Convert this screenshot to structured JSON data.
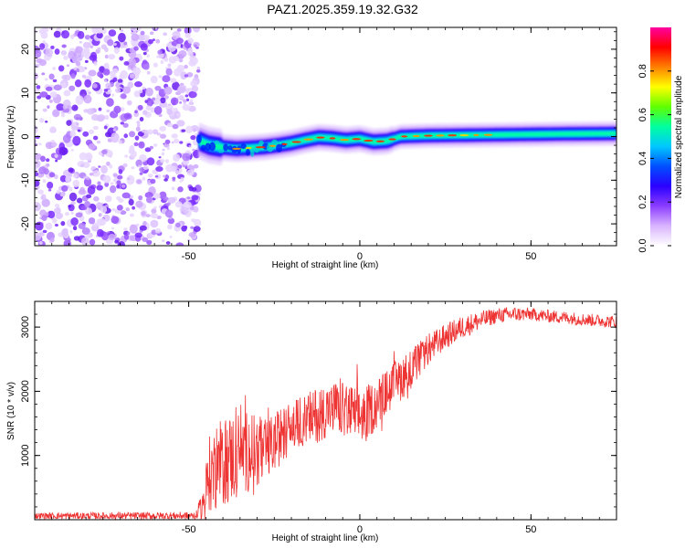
{
  "title": "PAZ1.2025.359.19.32.G32",
  "chart_data": [
    {
      "type": "heatmap",
      "title": "PAZ1.2025.359.19.32.G32",
      "xlabel": "Height of straight line (km)",
      "ylabel": "Frequency (Hz)",
      "xlim": [
        -95,
        75
      ],
      "ylim": [
        -25,
        25
      ],
      "xticks": [
        -50,
        0,
        50
      ],
      "yticks": [
        -20,
        -10,
        0,
        10,
        20
      ],
      "noise_region_x": [
        -95,
        -47
      ],
      "ridge": {
        "x": [
          -47,
          -44,
          -40,
          -36,
          -32,
          -28,
          -24,
          -20,
          -16,
          -12,
          -8,
          -4,
          0,
          4,
          8,
          12,
          20,
          30,
          40,
          50,
          60,
          75
        ],
        "frequency": [
          -1,
          -2,
          -2.5,
          -2.8,
          -2.6,
          -2.4,
          -2,
          -1.5,
          -0.8,
          -0.2,
          -0.4,
          -0.8,
          -0.5,
          -1.2,
          -1,
          0,
          0.2,
          0.3,
          0.4,
          0.5,
          0.6,
          0.7
        ]
      },
      "colorbar": {
        "label": "Normalized spectral amplitude",
        "range": [
          0.0,
          1.0
        ],
        "ticks": [
          "0.0",
          "0.2",
          "0.4",
          "0.6",
          "0.8"
        ],
        "tick_values": [
          0.0,
          0.2,
          0.4,
          0.6,
          0.8
        ],
        "colormap": [
          "#ffffff",
          "#d9b3ff",
          "#8b3dff",
          "#2a00ff",
          "#0050ff",
          "#00c8ff",
          "#00ffa0",
          "#60ff00",
          "#ffff00",
          "#ff8000",
          "#ff0000",
          "#ff00a0"
        ]
      }
    },
    {
      "type": "line",
      "xlabel": "Height of straight line (km)",
      "ylabel": "SNR (10 * v/v)",
      "xlim": [
        -95,
        75
      ],
      "ylim": [
        0,
        3400
      ],
      "xticks": [
        -50,
        0,
        50
      ],
      "yticks": [
        1000,
        2000,
        3000
      ],
      "color": "#ee3333",
      "envelope": {
        "x": [
          -95,
          -48,
          -46,
          -44,
          -40,
          -36,
          -32,
          -28,
          -24,
          -20,
          -16,
          -12,
          -8,
          -4,
          0,
          4,
          8,
          12,
          16,
          20,
          25,
          30,
          35,
          40,
          45,
          50,
          55,
          60,
          65,
          70,
          75
        ],
        "mean": [
          60,
          60,
          200,
          700,
          900,
          1000,
          1100,
          1050,
          1250,
          1450,
          1550,
          1650,
          1750,
          1700,
          1600,
          1750,
          2000,
          2200,
          2400,
          2650,
          2850,
          3000,
          3100,
          3180,
          3200,
          3200,
          3170,
          3150,
          3120,
          3100,
          3080
        ],
        "amplitude": [
          50,
          60,
          250,
          600,
          700,
          700,
          650,
          500,
          450,
          400,
          400,
          450,
          400,
          450,
          450,
          400,
          350,
          350,
          300,
          250,
          200,
          180,
          150,
          120,
          120,
          100,
          100,
          100,
          100,
          100,
          100
        ]
      }
    }
  ]
}
